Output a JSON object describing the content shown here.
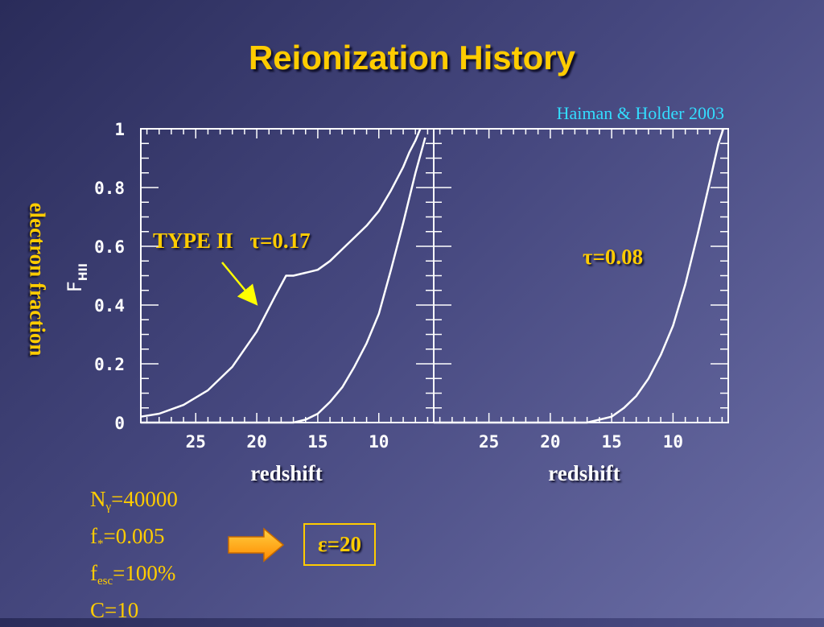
{
  "slide": {
    "title": "Reionization History",
    "citation": "Haiman & Holder 2003",
    "ylabel": "electron fraction",
    "xlabel": "redshift",
    "type_label": "TYPE II",
    "params": {
      "n_gamma_symbol": "N",
      "n_gamma_sub": "γ",
      "n_gamma_value": "=40000",
      "fstar_symbol": "f",
      "fstar_sub": "*",
      "fstar_value": "=0.005",
      "fesc_symbol": "f",
      "fesc_sub": "esc",
      "fesc_value": "=100%",
      "c_text": "C=10"
    },
    "epsilon": "ε=20"
  },
  "colors": {
    "accent": "#ffcc00",
    "citation": "#33ddff",
    "plot": "#ffffff"
  },
  "chart_data": [
    {
      "type": "line",
      "panel": "left",
      "annotation": "τ=0.17",
      "ylabel": "F_HII",
      "xlabel": "redshift",
      "xlim": [
        29.5,
        5.5
      ],
      "ylim": [
        0,
        1
      ],
      "xticks": [
        25,
        20,
        15,
        10
      ],
      "yticks": [
        0,
        0.2,
        0.4,
        0.6,
        0.8,
        1
      ],
      "ytick_labels": [
        "0",
        "0.2",
        "0.4",
        "0.6",
        "0.8",
        "1"
      ],
      "series": [
        {
          "x": [
            29.5,
            28,
            26,
            24,
            22,
            20,
            18.5,
            17.6,
            17,
            16,
            15,
            14,
            13,
            12,
            11,
            10,
            9,
            8,
            7.5,
            7,
            6.6
          ],
          "y": [
            0.02,
            0.03,
            0.06,
            0.11,
            0.19,
            0.31,
            0.43,
            0.5,
            0.5,
            0.51,
            0.52,
            0.55,
            0.59,
            0.63,
            0.67,
            0.72,
            0.79,
            0.87,
            0.92,
            0.96,
            1.0
          ]
        },
        {
          "x": [
            29.5,
            25,
            20,
            17,
            16,
            15,
            14,
            13,
            12,
            11,
            10,
            9,
            8,
            7,
            6.2
          ],
          "y": [
            0.0,
            0.0,
            0.0,
            0.0,
            0.01,
            0.03,
            0.07,
            0.12,
            0.19,
            0.27,
            0.37,
            0.52,
            0.68,
            0.85,
            0.97
          ]
        }
      ]
    },
    {
      "type": "line",
      "panel": "right",
      "annotation": "τ=0.08",
      "xlabel": "redshift",
      "xlim": [
        29.5,
        5.5
      ],
      "ylim": [
        0,
        1
      ],
      "xticks": [
        25,
        20,
        15,
        10
      ],
      "series": [
        {
          "x": [
            29.5,
            20,
            17,
            16,
            15,
            14,
            13,
            12,
            11,
            10,
            9,
            8,
            7,
            6.3,
            5.9
          ],
          "y": [
            0.0,
            0.0,
            0.0,
            0.01,
            0.02,
            0.05,
            0.09,
            0.15,
            0.23,
            0.33,
            0.47,
            0.64,
            0.82,
            0.95,
            1.0
          ]
        }
      ]
    }
  ]
}
